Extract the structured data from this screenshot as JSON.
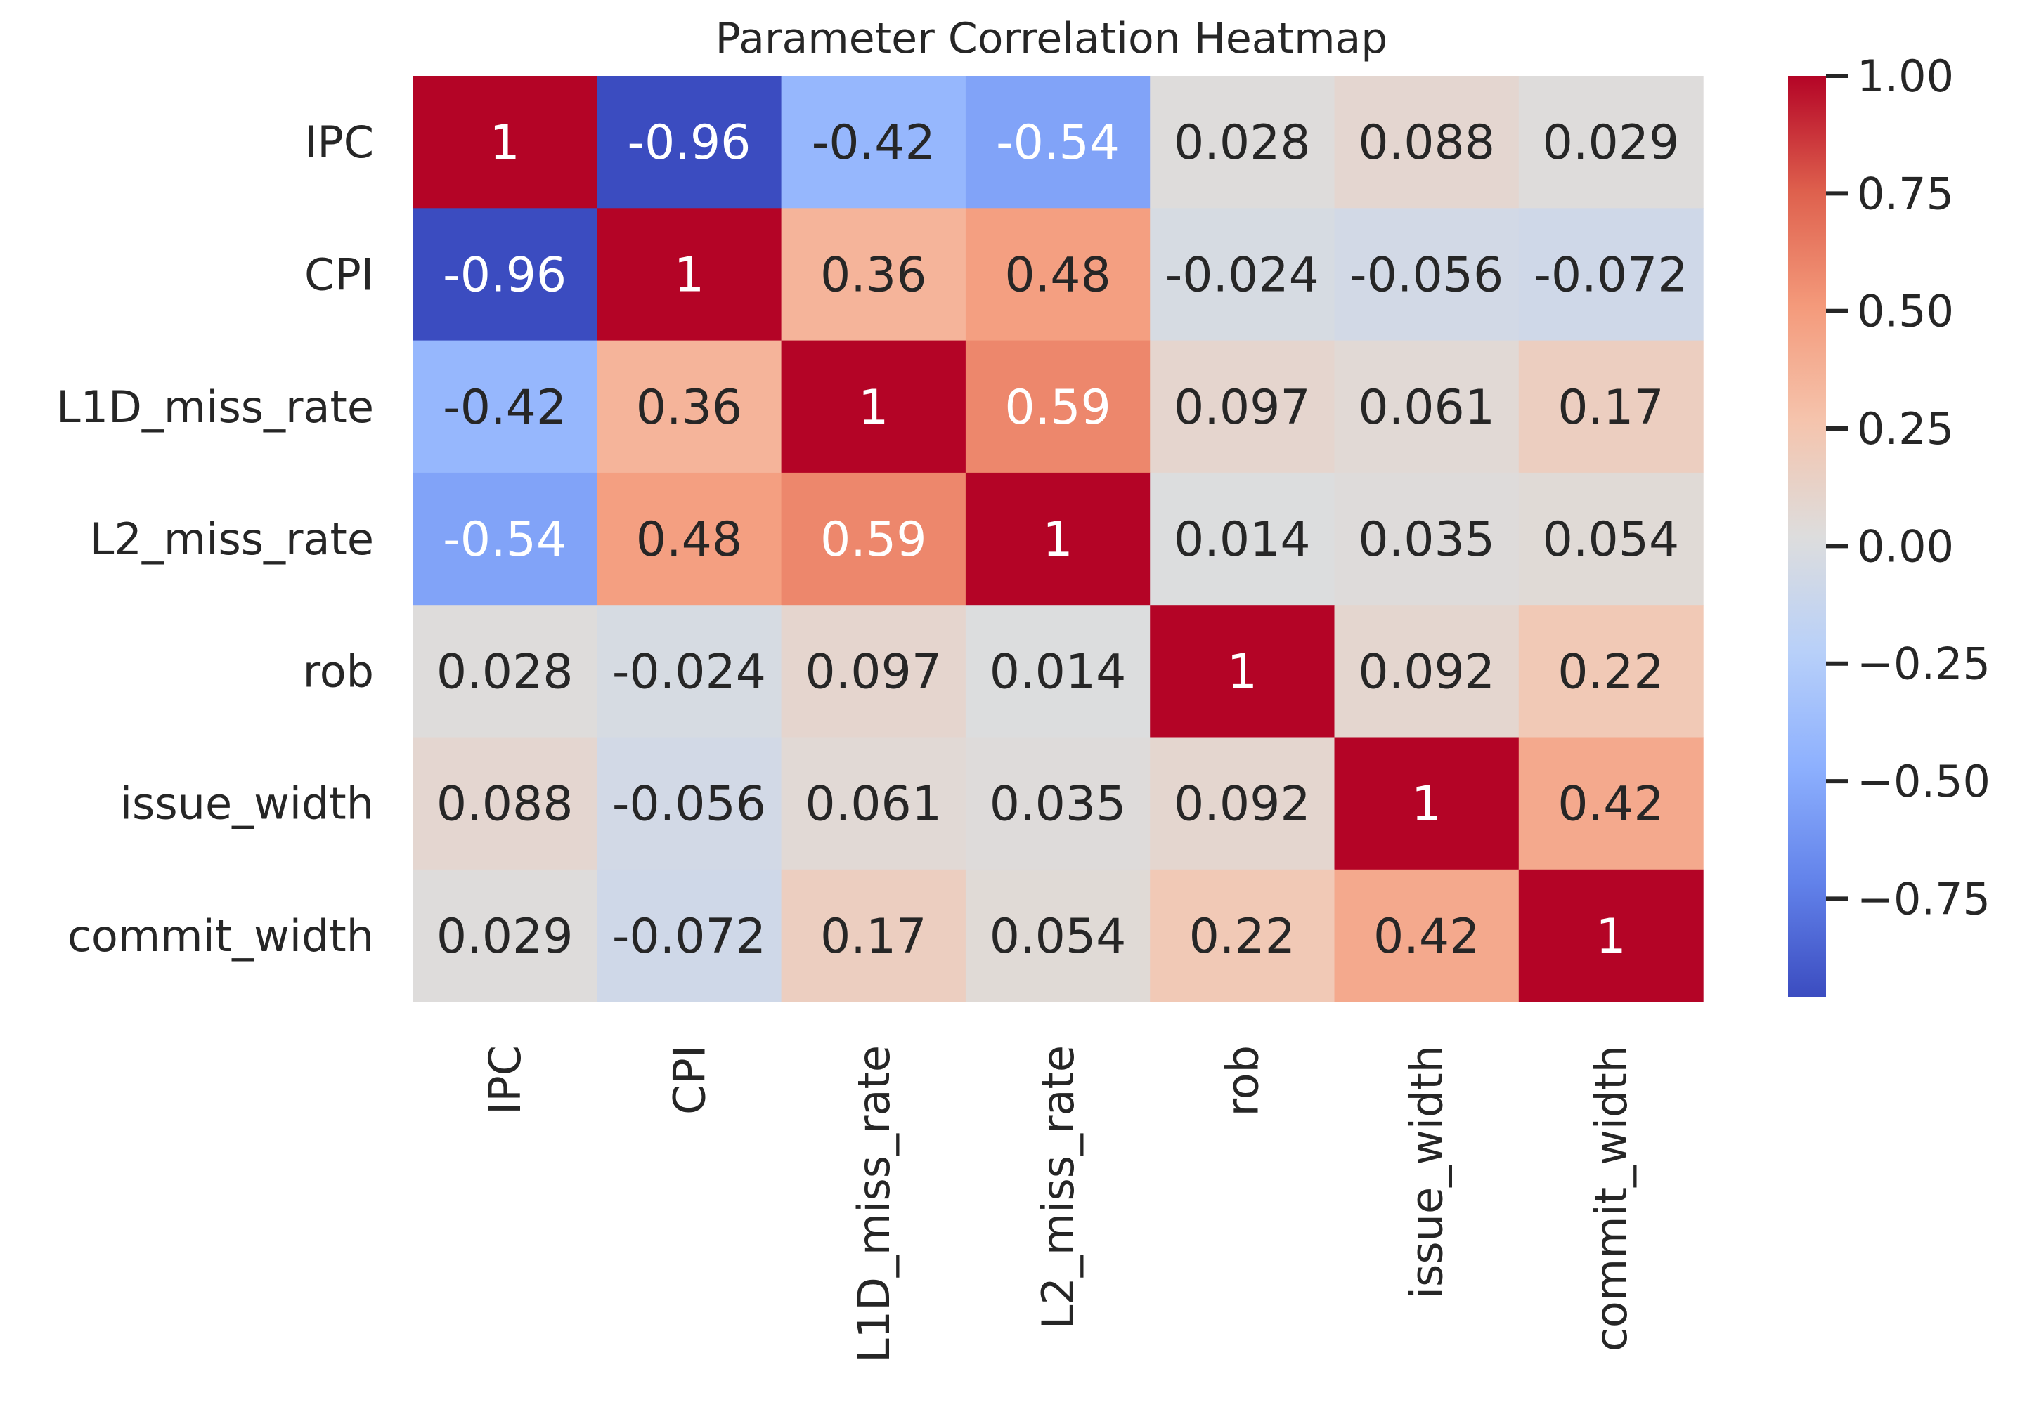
{
  "chart_data": {
    "type": "heatmap",
    "title": "Parameter Correlation Heatmap",
    "xlabel": "",
    "ylabel": "",
    "row_labels": [
      "IPC",
      "CPI",
      "L1D_miss_rate",
      "L2_miss_rate",
      "rob",
      "issue_width",
      "commit_width"
    ],
    "col_labels": [
      "IPC",
      "CPI",
      "L1D_miss_rate",
      "L2_miss_rate",
      "rob",
      "issue_width",
      "commit_width"
    ],
    "values": [
      [
        1,
        -0.96,
        -0.42,
        -0.54,
        0.028,
        0.088,
        0.029
      ],
      [
        -0.96,
        1,
        0.36,
        0.48,
        -0.024,
        -0.056,
        -0.072
      ],
      [
        -0.42,
        0.36,
        1,
        0.59,
        0.097,
        0.061,
        0.17
      ],
      [
        -0.54,
        0.48,
        0.59,
        1,
        0.014,
        0.035,
        0.054
      ],
      [
        0.028,
        -0.024,
        0.097,
        0.014,
        1,
        0.092,
        0.22
      ],
      [
        0.088,
        -0.056,
        0.061,
        0.035,
        0.092,
        1,
        0.42
      ],
      [
        0.029,
        -0.072,
        0.17,
        0.054,
        0.22,
        0.42,
        1
      ]
    ],
    "annotations": [
      [
        "1",
        "-0.96",
        "-0.42",
        "-0.54",
        "0.028",
        "0.088",
        "0.029"
      ],
      [
        "-0.96",
        "1",
        "0.36",
        "0.48",
        "-0.024",
        "-0.056",
        "-0.072"
      ],
      [
        "-0.42",
        "0.36",
        "1",
        "0.59",
        "0.097",
        "0.061",
        "0.17"
      ],
      [
        "-0.54",
        "0.48",
        "0.59",
        "1",
        "0.014",
        "0.035",
        "0.054"
      ],
      [
        "0.028",
        "-0.024",
        "0.097",
        "0.014",
        "1",
        "0.092",
        "0.22"
      ],
      [
        "0.088",
        "-0.056",
        "0.061",
        "0.035",
        "0.092",
        "1",
        "0.42"
      ],
      [
        "0.029",
        "-0.072",
        "0.17",
        "0.054",
        "0.22",
        "0.42",
        "1"
      ]
    ],
    "colormap": "coolwarm",
    "vmin": -0.96,
    "vmax": 1,
    "colorbar_ticks": [
      1.0,
      0.75,
      0.5,
      0.25,
      0.0,
      -0.25,
      -0.5,
      -0.75
    ],
    "colorbar_tick_labels": [
      "1.00",
      "0.75",
      "0.50",
      "0.25",
      "0.00",
      "−0.25",
      "−0.50",
      "−0.75"
    ]
  }
}
